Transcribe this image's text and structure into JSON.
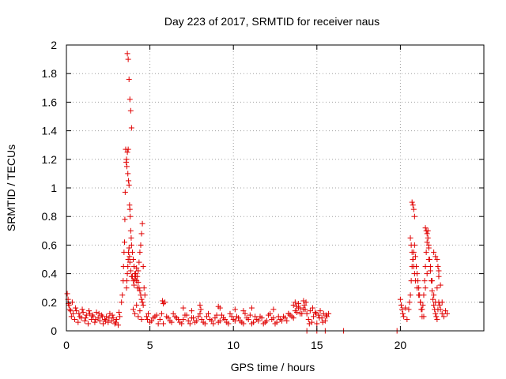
{
  "chart_data": {
    "type": "scatter",
    "title": "Day 223 of 2017, SRMTID for receiver naus",
    "xlabel": "GPS time / hours",
    "ylabel": "SRMTID / TECUs",
    "xlim": [
      0,
      25
    ],
    "ylim": [
      0,
      2
    ],
    "xticks": [
      "0",
      "5",
      "10",
      "15",
      "20"
    ],
    "yticks": [
      "0",
      "0.2",
      "0.4",
      "0.6",
      "0.8",
      "1",
      "1.2",
      "1.4",
      "1.6",
      "1.8",
      "2"
    ],
    "grid": true,
    "marker": "plus",
    "color": "#e00000",
    "series": [
      {
        "x": [
          0.05,
          0.1,
          0.15,
          0.2,
          0.3,
          0.4,
          0.5,
          0.6,
          0.7,
          0.8,
          0.9,
          1.0,
          1.1,
          1.2,
          1.3,
          1.4,
          1.5,
          1.6,
          1.7,
          1.8,
          1.9,
          2.0,
          2.1,
          2.2,
          2.3,
          2.4,
          2.5,
          2.6,
          2.7,
          2.8,
          2.9,
          3.0,
          3.1,
          3.2,
          0.12,
          0.25,
          0.35,
          0.55,
          0.75,
          0.95,
          1.15,
          1.35,
          1.55,
          1.75,
          1.95,
          2.15,
          2.35,
          2.55,
          2.75,
          2.95,
          3.15,
          3.3,
          3.35,
          3.4,
          3.42,
          3.45,
          3.48,
          3.5,
          3.52,
          3.55,
          3.58,
          3.6,
          3.62,
          3.65,
          3.68,
          3.7,
          3.72,
          3.75,
          3.78,
          3.8,
          3.82,
          3.85,
          3.88,
          3.9,
          3.95,
          4.0,
          4.05,
          4.1,
          4.15,
          4.2,
          4.25,
          4.3,
          4.35,
          4.4,
          4.45,
          4.5,
          4.55,
          4.6,
          4.65,
          4.7,
          3.6,
          3.62,
          3.65,
          3.68,
          3.7,
          3.72,
          3.75,
          3.78,
          3.8,
          3.85,
          3.9,
          3.65,
          3.7,
          3.75,
          3.8,
          3.85,
          3.9,
          3.95,
          4.0,
          4.05,
          4.1,
          4.15,
          4.2,
          4.25,
          4.3,
          4.35,
          4.4,
          4.45,
          4.5,
          4.55,
          4.6,
          4.0,
          4.1,
          4.2,
          4.3,
          4.4,
          4.5,
          4.8,
          4.9,
          5.0,
          5.2,
          5.4,
          5.6,
          5.8,
          5.9,
          6.0,
          6.2,
          6.4,
          6.6,
          6.8,
          7.0,
          7.2,
          7.4,
          7.6,
          7.8,
          8.0,
          8.2,
          8.4,
          8.6,
          8.8,
          9.0,
          9.2,
          9.4,
          9.6,
          9.8,
          10.0,
          10.2,
          10.4,
          10.6,
          10.8,
          11.0,
          11.2,
          11.4,
          11.6,
          11.8,
          12.0,
          12.2,
          12.4,
          12.6,
          12.8,
          13.0,
          13.2,
          13.4,
          13.6,
          13.8,
          14.0,
          14.2,
          4.85,
          5.1,
          5.3,
          5.5,
          5.7,
          6.1,
          6.3,
          6.5,
          6.7,
          6.9,
          7.1,
          7.3,
          7.5,
          7.7,
          7.9,
          8.1,
          8.3,
          8.5,
          8.7,
          8.9,
          9.1,
          9.3,
          9.5,
          9.7,
          9.9,
          10.1,
          10.3,
          10.5,
          10.7,
          10.9,
          11.1,
          11.3,
          11.5,
          11.7,
          11.9,
          12.1,
          12.3,
          12.5,
          12.7,
          12.9,
          13.1,
          13.3,
          13.5,
          13.7,
          13.9,
          14.1,
          5.75,
          5.8,
          7.0,
          7.5,
          8.0,
          8.05,
          9.1,
          9.2,
          10.1,
          10.6,
          11.1,
          12.4,
          13.3,
          13.6,
          13.7,
          13.8,
          13.9,
          14.0,
          14.2,
          14.3,
          14.4,
          14.5,
          14.6,
          14.7,
          14.8,
          14.9,
          15.0,
          15.1,
          15.2,
          15.3,
          15.4,
          15.5,
          15.6,
          15.7,
          14.25,
          14.35,
          14.55,
          14.75,
          14.95,
          15.15,
          15.35,
          15.55,
          14.4,
          15.0,
          15.5,
          16.6,
          19.8,
          20.0,
          20.05,
          20.1,
          20.15,
          20.2,
          20.3,
          20.4,
          20.5,
          20.55,
          20.6,
          20.65,
          20.7,
          20.75,
          20.8,
          20.85,
          20.9,
          20.95,
          21.0,
          21.05,
          21.1,
          21.15,
          21.2,
          21.25,
          21.3,
          21.35,
          21.4,
          21.45,
          21.5,
          21.55,
          21.6,
          21.65,
          21.7,
          21.75,
          21.8,
          21.85,
          21.9,
          21.95,
          22.0,
          22.05,
          22.1,
          22.15,
          22.2,
          22.25,
          22.3,
          22.35,
          22.4,
          22.5,
          22.6,
          22.7,
          22.8,
          20.6,
          20.65,
          20.7,
          20.75,
          20.8,
          20.85,
          20.9,
          21.0,
          21.1,
          21.2,
          21.3,
          21.4,
          21.5,
          21.6,
          21.7,
          21.8,
          21.9,
          22.0,
          22.1,
          22.2,
          22.3,
          22.4,
          22.5,
          20.7,
          20.75,
          20.8,
          20.85,
          21.5,
          21.55,
          21.6,
          21.65,
          21.7,
          22.0,
          22.1,
          22.2,
          22.25,
          22.3
        ],
        "y": [
          0.26,
          0.22,
          0.18,
          0.15,
          0.1,
          0.12,
          0.08,
          0.14,
          0.06,
          0.1,
          0.09,
          0.13,
          0.07,
          0.11,
          0.05,
          0.12,
          0.08,
          0.1,
          0.06,
          0.13,
          0.09,
          0.07,
          0.11,
          0.05,
          0.08,
          0.1,
          0.06,
          0.12,
          0.07,
          0.09,
          0.05,
          0.08,
          0.04,
          0.1,
          0.19,
          0.14,
          0.2,
          0.16,
          0.12,
          0.15,
          0.09,
          0.14,
          0.11,
          0.08,
          0.12,
          0.1,
          0.07,
          0.09,
          0.11,
          0.06,
          0.13,
          0.2,
          0.25,
          0.35,
          0.45,
          0.55,
          0.62,
          0.78,
          0.97,
          1.27,
          1.18,
          1.2,
          1.15,
          1.25,
          1.1,
          1.27,
          1.05,
          1.02,
          0.88,
          0.85,
          0.8,
          0.7,
          0.65,
          0.6,
          0.55,
          0.5,
          0.45,
          0.4,
          0.38,
          0.35,
          0.3,
          0.42,
          0.48,
          0.55,
          0.6,
          0.68,
          0.75,
          0.45,
          0.3,
          0.25,
          0.3,
          0.35,
          0.4,
          0.45,
          0.5,
          0.55,
          0.58,
          0.52,
          0.48,
          0.42,
          0.38,
          1.94,
          1.9,
          1.76,
          1.62,
          1.54,
          1.42,
          0.38,
          0.35,
          0.32,
          0.36,
          0.4,
          0.44,
          0.38,
          0.34,
          0.3,
          0.28,
          0.25,
          0.22,
          0.2,
          0.18,
          0.15,
          0.12,
          0.18,
          0.1,
          0.14,
          0.08,
          0.1,
          0.12,
          0.06,
          0.09,
          0.11,
          0.08,
          0.05,
          0.2,
          0.1,
          0.07,
          0.12,
          0.09,
          0.06,
          0.08,
          0.11,
          0.05,
          0.09,
          0.07,
          0.12,
          0.06,
          0.1,
          0.08,
          0.05,
          0.11,
          0.07,
          0.09,
          0.06,
          0.12,
          0.08,
          0.1,
          0.07,
          0.05,
          0.09,
          0.11,
          0.06,
          0.08,
          0.1,
          0.05,
          0.07,
          0.12,
          0.09,
          0.06,
          0.08,
          0.1,
          0.07,
          0.11,
          0.09,
          0.13,
          0.12,
          0.15,
          0.08,
          0.07,
          0.1,
          0.05,
          0.12,
          0.09,
          0.06,
          0.1,
          0.08,
          0.05,
          0.11,
          0.07,
          0.09,
          0.06,
          0.1,
          0.08,
          0.05,
          0.12,
          0.07,
          0.09,
          0.06,
          0.11,
          0.08,
          0.05,
          0.1,
          0.07,
          0.09,
          0.06,
          0.12,
          0.08,
          0.05,
          0.1,
          0.07,
          0.09,
          0.06,
          0.11,
          0.08,
          0.05,
          0.1,
          0.07,
          0.09,
          0.12,
          0.1,
          0.14,
          0.16,
          0.12,
          0.21,
          0.19,
          0.16,
          0.14,
          0.18,
          0.15,
          0.17,
          0.16,
          0.15,
          0.14,
          0.16,
          0.15,
          0.12,
          0.18,
          0.2,
          0.17,
          0.19,
          0.16,
          0.21,
          0.15,
          0.12,
          0.08,
          0.14,
          0.06,
          0.1,
          0.13,
          0.05,
          0.11,
          0.14,
          0.09,
          0.12,
          0.07,
          0.1,
          0.12,
          0.18,
          0.2,
          0.05,
          0.16,
          0.12,
          0.09,
          0.06,
          0.11,
          0.0,
          0.0,
          0.0,
          0.0,
          0.0,
          0.22,
          0.18,
          0.15,
          0.12,
          0.1,
          0.16,
          0.08,
          0.15,
          0.2,
          0.25,
          0.35,
          0.45,
          0.5,
          0.55,
          0.6,
          0.52,
          0.45,
          0.4,
          0.35,
          0.3,
          0.25,
          0.2,
          0.15,
          0.1,
          0.18,
          0.25,
          0.35,
          0.45,
          0.55,
          0.62,
          0.7,
          0.58,
          0.5,
          0.42,
          0.35,
          0.28,
          0.22,
          0.18,
          0.15,
          0.12,
          0.1,
          0.08,
          0.15,
          0.2,
          0.18,
          0.15,
          0.12,
          0.1,
          0.14,
          0.12,
          0.65,
          0.6,
          0.55,
          0.5,
          0.45,
          0.4,
          0.35,
          0.3,
          0.25,
          0.2,
          0.15,
          0.1,
          0.3,
          0.4,
          0.5,
          0.45,
          0.35,
          0.25,
          0.2,
          0.3,
          0.38,
          0.32,
          0.2,
          0.9,
          0.88,
          0.85,
          0.8,
          0.72,
          0.7,
          0.68,
          0.65,
          0.6,
          0.55,
          0.52,
          0.5,
          0.45,
          0.42
        ]
      }
    ]
  }
}
